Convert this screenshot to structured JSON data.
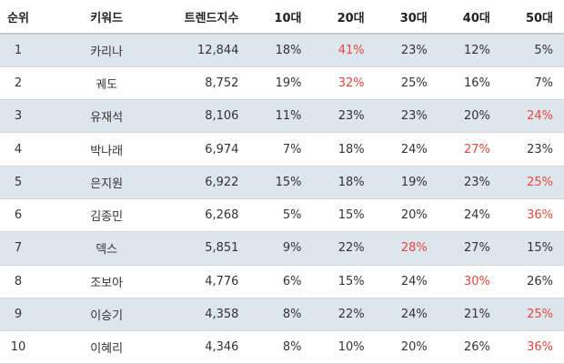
{
  "headers": {
    "rank": "순위",
    "keyword": "키워드",
    "trend": "트렌드지수",
    "age10": "10대",
    "age20": "20대",
    "age30": "30대",
    "age40": "40대",
    "age50": "50대"
  },
  "highlight_color": "#e8473e",
  "stripe_color": "#dde6ec",
  "rows": [
    {
      "rank": "1",
      "keyword": "카리나",
      "trend": "12,844",
      "age10": "18%",
      "age20": "41%",
      "age30": "23%",
      "age40": "12%",
      "age50": "5%",
      "highlight": "age20"
    },
    {
      "rank": "2",
      "keyword": "궤도",
      "trend": "8,752",
      "age10": "19%",
      "age20": "32%",
      "age30": "25%",
      "age40": "16%",
      "age50": "7%",
      "highlight": "age20"
    },
    {
      "rank": "3",
      "keyword": "유재석",
      "trend": "8,106",
      "age10": "11%",
      "age20": "23%",
      "age30": "23%",
      "age40": "20%",
      "age50": "24%",
      "highlight": "age50"
    },
    {
      "rank": "4",
      "keyword": "박나래",
      "trend": "6,974",
      "age10": "7%",
      "age20": "18%",
      "age30": "24%",
      "age40": "27%",
      "age50": "23%",
      "highlight": "age40"
    },
    {
      "rank": "5",
      "keyword": "은지원",
      "trend": "6,922",
      "age10": "15%",
      "age20": "18%",
      "age30": "19%",
      "age40": "23%",
      "age50": "25%",
      "highlight": "age50"
    },
    {
      "rank": "6",
      "keyword": "김종민",
      "trend": "6,268",
      "age10": "5%",
      "age20": "15%",
      "age30": "20%",
      "age40": "24%",
      "age50": "36%",
      "highlight": "age50"
    },
    {
      "rank": "7",
      "keyword": "덱스",
      "trend": "5,851",
      "age10": "9%",
      "age20": "22%",
      "age30": "28%",
      "age40": "27%",
      "age50": "15%",
      "highlight": "age30"
    },
    {
      "rank": "8",
      "keyword": "조보아",
      "trend": "4,776",
      "age10": "6%",
      "age20": "15%",
      "age30": "24%",
      "age40": "30%",
      "age50": "26%",
      "highlight": "age40"
    },
    {
      "rank": "9",
      "keyword": "이승기",
      "trend": "4,358",
      "age10": "8%",
      "age20": "22%",
      "age30": "24%",
      "age40": "21%",
      "age50": "25%",
      "highlight": "age50"
    },
    {
      "rank": "10",
      "keyword": "이혜리",
      "trend": "4,346",
      "age10": "8%",
      "age20": "10%",
      "age30": "20%",
      "age40": "26%",
      "age50": "36%",
      "highlight": "age50"
    }
  ]
}
